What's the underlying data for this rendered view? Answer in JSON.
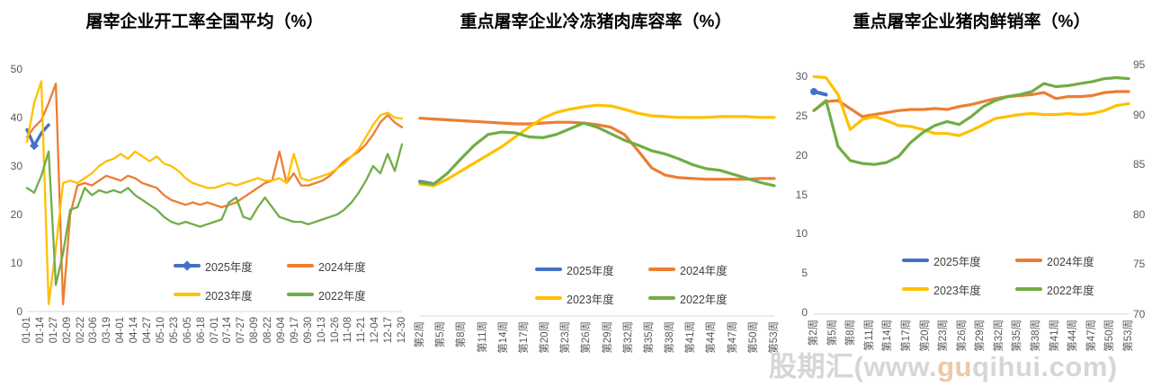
{
  "watermark": {
    "prefix": "股期汇(www.",
    "highlight": "gu",
    "suffix": "qihui.com)"
  },
  "colors": {
    "year2025": "#4472C4",
    "year2024": "#ED7D31",
    "year2023": "#FFC000",
    "year2022": "#70AD47",
    "axis_text": "#595959",
    "baseline": "#D9D9D9",
    "title_text": "#000000",
    "watermark": "#D2D2D2"
  },
  "legend_labels": [
    "2025年度",
    "2024年度",
    "2023年度",
    "2022年度"
  ],
  "chart_data": [
    {
      "type": "line",
      "title": "屠宰企业开工率全国平均（%）",
      "xlabel": "",
      "ylabel": "",
      "ylim": [
        0,
        50
      ],
      "grid": false,
      "legend_position": "bottom-center",
      "x_unit": "date, daily from 01-01 to 12-30",
      "x_tick_labels": [
        "01-01",
        "01-14",
        "01-27",
        "02-09",
        "02-22",
        "03-06",
        "03-19",
        "04-01",
        "04-14",
        "04-27",
        "05-10",
        "05-23",
        "06-05",
        "06-18",
        "07-01",
        "07-14",
        "07-27",
        "08-09",
        "08-22",
        "09-04",
        "09-17",
        "09-30",
        "10-13",
        "10-26",
        "11-08",
        "11-21",
        "12-04",
        "12-17",
        "12-30"
      ],
      "y_ticks_left": [
        50,
        40,
        30,
        20,
        10,
        0
      ],
      "series": [
        {
          "name": "2025年度",
          "color": "#4472C4",
          "width": 3.4,
          "marker": "diamond",
          "marker_at": 1,
          "values": [
            37.5,
            34.2,
            36.8,
            38.5,
            null,
            null,
            null,
            null,
            null,
            null,
            null,
            null,
            null,
            null,
            null,
            null,
            null,
            null,
            null,
            null,
            null,
            null,
            null,
            null,
            null,
            null,
            null,
            null,
            null,
            null,
            null,
            null,
            null,
            null,
            null,
            null,
            null,
            null,
            null,
            null,
            null,
            null,
            null,
            null,
            null,
            null,
            null,
            null,
            null,
            null,
            null,
            null,
            null
          ]
        },
        {
          "name": "2024年度",
          "color": "#ED7D31",
          "values": [
            36,
            38,
            39.5,
            43,
            47,
            1.5,
            20,
            26,
            26.5,
            26,
            27,
            28,
            27.5,
            27,
            28,
            27.5,
            26.5,
            26,
            25.5,
            24,
            23,
            22.5,
            22,
            22.5,
            22,
            22.5,
            22,
            21.5,
            22,
            22.5,
            23.5,
            24.5,
            25.5,
            26.5,
            27,
            33,
            26.5,
            28.5,
            26,
            26,
            26.5,
            27,
            28,
            29.5,
            31,
            32,
            33,
            34.5,
            36.5,
            39,
            40.5,
            39,
            38
          ]
        },
        {
          "name": "2023年度",
          "color": "#FFC000",
          "values": [
            35,
            43,
            47.5,
            1.5,
            13,
            26.5,
            27,
            26.5,
            27.5,
            28.5,
            30,
            31,
            31.5,
            32.5,
            31.5,
            33,
            32,
            31,
            32,
            30.5,
            30,
            29,
            27.5,
            26.5,
            26,
            25.5,
            25.5,
            26,
            26.5,
            26,
            26.5,
            27,
            27.5,
            27,
            27,
            27.5,
            26.5,
            32.5,
            27.5,
            27,
            27.5,
            28,
            28.5,
            29.5,
            30.5,
            32,
            33.5,
            36,
            38.5,
            40.5,
            41,
            40,
            39.8
          ]
        },
        {
          "name": "2022年度",
          "color": "#70AD47",
          "values": [
            25.5,
            24.5,
            28,
            33,
            5.5,
            12,
            21,
            21.5,
            25.5,
            24,
            25,
            24.5,
            25,
            24.5,
            25.5,
            24,
            23,
            22,
            21,
            19.5,
            18.5,
            18,
            18.5,
            18,
            17.5,
            18,
            18.5,
            19,
            22.5,
            23.5,
            19.5,
            19,
            21.5,
            23.5,
            21.5,
            19.5,
            19,
            18.5,
            18.5,
            18,
            18.5,
            19,
            19.5,
            20,
            21,
            22.5,
            24.5,
            27,
            30,
            28.5,
            32.5,
            29,
            34.5
          ]
        }
      ]
    },
    {
      "type": "line",
      "title": "重点屠宰企业冷冻猪肉库容率（%）",
      "xlabel": "",
      "ylabel": "",
      "ylim": [
        0,
        30
      ],
      "y_axis_labels_hidden": true,
      "grid": false,
      "legend_position": "bottom-center",
      "x_unit": "week, 第1周 to 第53周",
      "x_tick_labels": [
        "第2周",
        "第5周",
        "第8周",
        "第11周",
        "第14周",
        "第17周",
        "第20周",
        "第23周",
        "第26周",
        "第29周",
        "第32周",
        "第35周",
        "第38周",
        "第41周",
        "第44周",
        "第47周",
        "第50周",
        "第53周"
      ],
      "y_ticks_left": [],
      "series": [
        {
          "name": "2025年度",
          "color": "#4472C4",
          "width": 4,
          "values": [
            16.5,
            16.2,
            null,
            null,
            null,
            null,
            null,
            null,
            null,
            null,
            null,
            null,
            null,
            null,
            null,
            null,
            null,
            null,
            null,
            null,
            null,
            null,
            null,
            null,
            null,
            null,
            null
          ]
        },
        {
          "name": "2024年度",
          "color": "#ED7D31",
          "values": [
            24.3,
            24.2,
            24.1,
            24,
            23.9,
            23.8,
            23.7,
            23.6,
            23.6,
            23.7,
            23.8,
            23.8,
            23.7,
            23.5,
            23.2,
            22.3,
            20.3,
            18.2,
            17.3,
            17,
            16.9,
            16.8,
            16.8,
            16.8,
            16.8,
            16.9,
            16.9
          ]
        },
        {
          "name": "2023年度",
          "color": "#FFC000",
          "values": [
            16.2,
            16,
            16.8,
            17.8,
            18.8,
            19.8,
            20.8,
            22,
            23.2,
            24.3,
            25,
            25.4,
            25.7,
            25.9,
            25.8,
            25.4,
            24.9,
            24.6,
            24.5,
            24.4,
            24.4,
            24.4,
            24.5,
            24.5,
            24.5,
            24.4,
            24.4
          ]
        },
        {
          "name": "2022年度",
          "color": "#70AD47",
          "values": [
            16.4,
            16.2,
            17.5,
            19.3,
            21,
            22.3,
            22.6,
            22.5,
            22,
            21.9,
            22.3,
            23,
            23.7,
            23.2,
            22.4,
            21.6,
            21,
            20.3,
            19.9,
            19.3,
            18.6,
            18.1,
            17.9,
            17.4,
            16.9,
            16.4,
            16
          ]
        }
      ]
    },
    {
      "type": "line",
      "title": "重点屠宰企业猪肉鲜销率（%）",
      "xlabel": "",
      "ylabel": "",
      "ylim_left": [
        0,
        30
      ],
      "ylim_right": [
        70,
        95
      ],
      "series_axis": "right",
      "grid": false,
      "legend_position": "bottom-center",
      "x_unit": "week, 第1周 to 第53周",
      "x_tick_labels": [
        "第2周",
        "第5周",
        "第8周",
        "第11周",
        "第14周",
        "第17周",
        "第20周",
        "第23周",
        "第26周",
        "第29周",
        "第32周",
        "第35周",
        "第38周",
        "第41周",
        "第44周",
        "第47周",
        "第50周",
        "第53周"
      ],
      "y_ticks_left": [
        30,
        25,
        20,
        15,
        10,
        5,
        0
      ],
      "y_ticks_right": [
        95,
        90,
        85,
        80,
        75,
        70
      ],
      "series": [
        {
          "name": "2025年度",
          "color": "#4472C4",
          "width": 4,
          "marker": "dot",
          "marker_at": 0,
          "values": [
            92.3,
            92,
            null,
            null,
            null,
            null,
            null,
            null,
            null,
            null,
            null,
            null,
            null,
            null,
            null,
            null,
            null,
            null,
            null,
            null,
            null,
            null,
            null,
            null,
            null,
            null,
            null
          ]
        },
        {
          "name": "2024年度",
          "color": "#ED7D31",
          "values": [
            90.4,
            91.3,
            91.4,
            90.6,
            89.8,
            90,
            90.2,
            90.4,
            90.5,
            90.5,
            90.6,
            90.5,
            90.8,
            91,
            91.3,
            91.6,
            91.8,
            91.9,
            92,
            92.2,
            91.6,
            91.8,
            91.8,
            91.9,
            92.2,
            92.3,
            92.3
          ]
        },
        {
          "name": "2023年度",
          "color": "#FFC000",
          "values": [
            93.8,
            93.7,
            92,
            88.5,
            89.5,
            89.8,
            89.4,
            88.9,
            88.8,
            88.5,
            88.1,
            88.1,
            87.9,
            88.4,
            89,
            89.6,
            89.8,
            90,
            90.1,
            90,
            90,
            90.1,
            90,
            90.1,
            90.4,
            90.9,
            91.1
          ]
        },
        {
          "name": "2022年度",
          "color": "#70AD47",
          "values": [
            90.4,
            91.4,
            86.8,
            85.4,
            85.1,
            85,
            85.2,
            85.8,
            87.2,
            88.2,
            88.9,
            89.3,
            89,
            89.8,
            90.8,
            91.4,
            91.8,
            92,
            92.3,
            93.1,
            92.8,
            92.9,
            93.1,
            93.3,
            93.6,
            93.7,
            93.6
          ]
        }
      ]
    }
  ]
}
